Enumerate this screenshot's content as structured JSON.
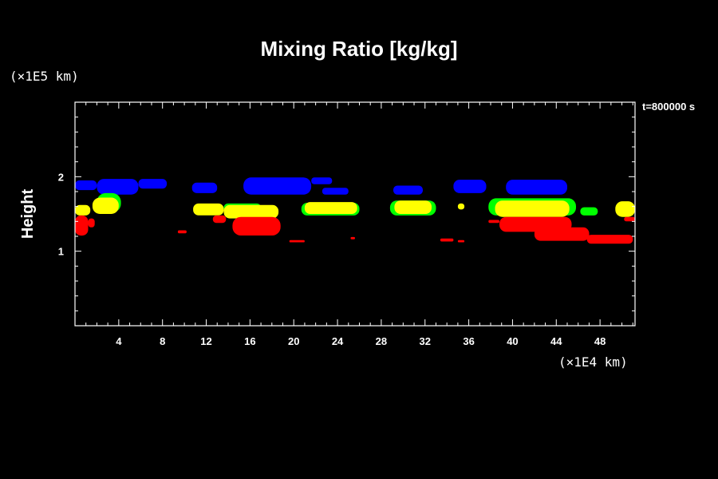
{
  "chart_data": {
    "type": "heatmap",
    "title": "Mixing Ratio [kg/kg]",
    "ylabel": "Height",
    "yunit": "(×1E5 km)",
    "xunit": "(×1E4 km)",
    "time_label": "t=800000 s",
    "xlim": [
      0,
      51.2
    ],
    "ylim": [
      0,
      3.0
    ],
    "x_ticks": [
      4,
      8,
      12,
      16,
      20,
      24,
      28,
      32,
      36,
      40,
      44,
      48
    ],
    "y_ticks": [
      1,
      2
    ],
    "colors": {
      "blue": "#0000ff",
      "green": "#00ff00",
      "yellow": "#ffff00",
      "red": "#ff0000"
    },
    "regions": [
      {
        "color": "blue",
        "x0": 0.0,
        "x1": 2.0,
        "y0": 1.82,
        "y1": 1.95
      },
      {
        "color": "blue",
        "x0": 2.0,
        "x1": 5.8,
        "y0": 1.76,
        "y1": 1.97
      },
      {
        "color": "blue",
        "x0": 5.8,
        "x1": 8.4,
        "y0": 1.84,
        "y1": 1.97
      },
      {
        "color": "blue",
        "x0": 10.7,
        "x1": 13.0,
        "y0": 1.78,
        "y1": 1.92
      },
      {
        "color": "blue",
        "x0": 15.4,
        "x1": 21.6,
        "y0": 1.76,
        "y1": 1.99
      },
      {
        "color": "blue",
        "x0": 21.6,
        "x1": 23.5,
        "y0": 1.9,
        "y1": 1.99
      },
      {
        "color": "blue",
        "x0": 22.6,
        "x1": 25.0,
        "y0": 1.76,
        "y1": 1.85
      },
      {
        "color": "blue",
        "x0": 29.1,
        "x1": 31.8,
        "y0": 1.76,
        "y1": 1.88
      },
      {
        "color": "blue",
        "x0": 34.6,
        "x1": 37.6,
        "y0": 1.78,
        "y1": 1.96
      },
      {
        "color": "blue",
        "x0": 39.4,
        "x1": 45.0,
        "y0": 1.76,
        "y1": 1.96
      },
      {
        "color": "green",
        "x0": 2.0,
        "x1": 4.2,
        "y0": 1.52,
        "y1": 1.78
      },
      {
        "color": "green",
        "x0": 13.6,
        "x1": 17.0,
        "y0": 1.52,
        "y1": 1.64
      },
      {
        "color": "green",
        "x0": 20.7,
        "x1": 26.0,
        "y0": 1.48,
        "y1": 1.65
      },
      {
        "color": "green",
        "x0": 28.8,
        "x1": 33.0,
        "y0": 1.48,
        "y1": 1.68
      },
      {
        "color": "green",
        "x0": 37.8,
        "x1": 45.8,
        "y0": 1.48,
        "y1": 1.71
      },
      {
        "color": "green",
        "x0": 46.2,
        "x1": 47.8,
        "y0": 1.48,
        "y1": 1.59
      },
      {
        "color": "yellow",
        "x0": 0.0,
        "x1": 1.4,
        "y0": 1.48,
        "y1": 1.62
      },
      {
        "color": "yellow",
        "x0": 1.6,
        "x1": 4.0,
        "y0": 1.5,
        "y1": 1.72
      },
      {
        "color": "yellow",
        "x0": 10.8,
        "x1": 13.6,
        "y0": 1.48,
        "y1": 1.64
      },
      {
        "color": "yellow",
        "x0": 13.6,
        "x1": 18.6,
        "y0": 1.44,
        "y1": 1.62
      },
      {
        "color": "yellow",
        "x0": 21.0,
        "x1": 25.8,
        "y0": 1.5,
        "y1": 1.66
      },
      {
        "color": "yellow",
        "x0": 29.2,
        "x1": 32.6,
        "y0": 1.5,
        "y1": 1.68
      },
      {
        "color": "yellow",
        "x0": 35.0,
        "x1": 35.6,
        "y0": 1.56,
        "y1": 1.64
      },
      {
        "color": "yellow",
        "x0": 38.4,
        "x1": 45.2,
        "y0": 1.46,
        "y1": 1.68
      },
      {
        "color": "yellow",
        "x0": 49.4,
        "x1": 51.2,
        "y0": 1.46,
        "y1": 1.67
      },
      {
        "color": "red",
        "x0": 0.0,
        "x1": 1.2,
        "y0": 1.21,
        "y1": 1.48
      },
      {
        "color": "red",
        "x0": 1.2,
        "x1": 1.8,
        "y0": 1.32,
        "y1": 1.44
      },
      {
        "color": "red",
        "x0": 9.4,
        "x1": 10.2,
        "y0": 1.24,
        "y1": 1.28
      },
      {
        "color": "red",
        "x0": 12.6,
        "x1": 13.8,
        "y0": 1.38,
        "y1": 1.48
      },
      {
        "color": "red",
        "x0": 14.4,
        "x1": 18.8,
        "y0": 1.21,
        "y1": 1.46
      },
      {
        "color": "red",
        "x0": 19.6,
        "x1": 21.0,
        "y0": 1.12,
        "y1": 1.15
      },
      {
        "color": "red",
        "x0": 25.2,
        "x1": 25.6,
        "y0": 1.16,
        "y1": 1.19
      },
      {
        "color": "red",
        "x0": 33.4,
        "x1": 34.6,
        "y0": 1.13,
        "y1": 1.17
      },
      {
        "color": "red",
        "x0": 35.0,
        "x1": 35.6,
        "y0": 1.12,
        "y1": 1.15
      },
      {
        "color": "red",
        "x0": 37.8,
        "x1": 38.8,
        "y0": 1.38,
        "y1": 1.42
      },
      {
        "color": "red",
        "x0": 38.8,
        "x1": 45.4,
        "y0": 1.26,
        "y1": 1.46
      },
      {
        "color": "red",
        "x0": 42.0,
        "x1": 47.0,
        "y0": 1.14,
        "y1": 1.32
      },
      {
        "color": "red",
        "x0": 46.8,
        "x1": 51.0,
        "y0": 1.1,
        "y1": 1.22
      },
      {
        "color": "red",
        "x0": 50.2,
        "x1": 51.2,
        "y0": 1.4,
        "y1": 1.46
      }
    ]
  }
}
